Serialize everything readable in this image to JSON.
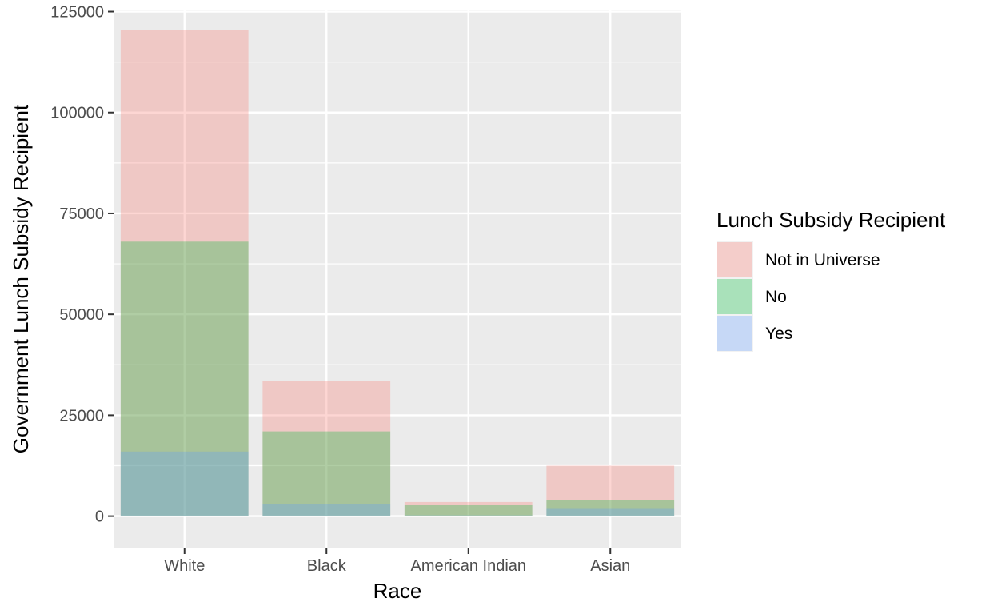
{
  "chart_data": {
    "type": "bar",
    "title": "",
    "xlabel": "Race",
    "ylabel": "Government Lunch Subsidy Recipient",
    "categories": [
      "White",
      "Black",
      "American Indian",
      "Asian"
    ],
    "ylim": [
      -8000,
      125500
    ],
    "yticks": [
      0,
      25000,
      50000,
      75000,
      100000,
      125000
    ],
    "ytick_labels": [
      "0",
      "25000",
      "50000",
      "75000",
      "100000",
      "125000"
    ],
    "grid": true,
    "overlapping": true,
    "series": [
      {
        "name": "Not in Universe",
        "color": "#f8766d",
        "values": [
          120500,
          33500,
          3500,
          12500
        ]
      },
      {
        "name": "No",
        "color": "#00ba38",
        "values": [
          68000,
          21000,
          2700,
          4000
        ]
      },
      {
        "name": "Yes",
        "color": "#619cff",
        "values": [
          16000,
          3000,
          200,
          1800
        ]
      }
    ],
    "legend": {
      "title": "Lunch Subsidy Recipient",
      "position": "right"
    }
  }
}
